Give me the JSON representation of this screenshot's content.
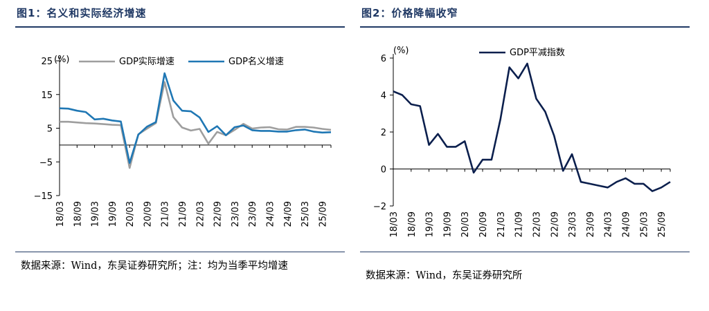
{
  "figures": [
    {
      "title": "图1：名义和实际经济增速",
      "source": "数据来源：Wind，东吴证券研究所；注：均为当季平均增速"
    },
    {
      "title": "图2：价格降幅收窄",
      "source": "数据来源：Wind，东吴证券研究所"
    }
  ],
  "chart_data": [
    {
      "type": "line",
      "title": "",
      "ylabel": "(%)",
      "xlabel": "",
      "ylim": [
        -15,
        25
      ],
      "yticks": [
        25,
        15,
        5,
        -5,
        -15
      ],
      "tick_labels": [
        "18/03",
        "18/09",
        "19/03",
        "19/09",
        "20/03",
        "20/09",
        "21/03",
        "21/09",
        "22/03",
        "22/09",
        "23/03",
        "23/09",
        "24/03",
        "24/09",
        "25/03",
        "25/09"
      ],
      "categories": [
        "18/03",
        "18/06",
        "18/09",
        "18/12",
        "19/03",
        "19/06",
        "19/09",
        "19/12",
        "20/03",
        "20/06",
        "20/09",
        "20/12",
        "21/03",
        "21/06",
        "21/09",
        "21/12",
        "22/03",
        "22/06",
        "22/09",
        "22/12",
        "23/03",
        "23/06",
        "23/09",
        "23/12",
        "24/03",
        "24/06",
        "24/09",
        "24/12",
        "25/03",
        "25/06",
        "25/09",
        "25/12"
      ],
      "legend": "top",
      "series": [
        {
          "name": "GDP实际增速",
          "color": "#9e9e9e",
          "values": [
            6.9,
            6.9,
            6.7,
            6.5,
            6.4,
            6.2,
            6.0,
            5.9,
            -6.8,
            3.2,
            4.9,
            6.5,
            18.7,
            8.3,
            5.2,
            4.3,
            4.8,
            0.4,
            3.9,
            2.9,
            4.5,
            6.3,
            4.9,
            5.2,
            5.3,
            4.7,
            4.6,
            5.4,
            5.4,
            5.2,
            4.8,
            4.5
          ]
        },
        {
          "name": "GDP名义增速",
          "color": "#1f77b4",
          "values": [
            10.9,
            10.8,
            10.2,
            9.8,
            7.6,
            7.8,
            7.3,
            7.0,
            -5.3,
            3.1,
            5.5,
            6.8,
            21.3,
            13.2,
            10.2,
            10.0,
            8.2,
            3.9,
            5.6,
            2.9,
            5.3,
            5.8,
            4.4,
            4.2,
            4.2,
            4.0,
            4.0,
            4.4,
            4.6,
            4.0,
            3.7,
            3.8
          ]
        }
      ]
    },
    {
      "type": "line",
      "title": "",
      "ylabel": "(%)",
      "xlabel": "",
      "ylim": [
        -2,
        6
      ],
      "yticks": [
        6,
        4,
        2,
        0,
        -2
      ],
      "tick_labels": [
        "18/03",
        "18/09",
        "19/03",
        "19/09",
        "20/03",
        "20/09",
        "21/03",
        "21/09",
        "22/03",
        "22/09",
        "23/03",
        "23/09",
        "24/03",
        "24/09",
        "25/03",
        "25/09"
      ],
      "categories": [
        "18/03",
        "18/06",
        "18/09",
        "18/12",
        "19/03",
        "19/06",
        "19/09",
        "19/12",
        "20/03",
        "20/06",
        "20/09",
        "20/12",
        "21/03",
        "21/06",
        "21/09",
        "21/12",
        "22/03",
        "22/06",
        "22/09",
        "22/12",
        "23/03",
        "23/06",
        "23/09",
        "23/12",
        "24/03",
        "24/06",
        "24/09",
        "24/12",
        "25/03",
        "25/06",
        "25/09",
        "25/12"
      ],
      "legend": "top",
      "series": [
        {
          "name": "GDP平减指数",
          "color": "#0b1f4d",
          "values": [
            4.2,
            4.0,
            3.5,
            3.4,
            1.3,
            1.9,
            1.2,
            1.2,
            1.5,
            -0.2,
            0.5,
            0.5,
            2.7,
            5.5,
            4.9,
            5.7,
            3.8,
            3.1,
            1.8,
            -0.1,
            0.8,
            -0.7,
            -0.8,
            -0.9,
            -1.0,
            -0.7,
            -0.5,
            -0.8,
            -0.8,
            -1.2,
            -1.0,
            -0.7
          ]
        }
      ]
    }
  ]
}
